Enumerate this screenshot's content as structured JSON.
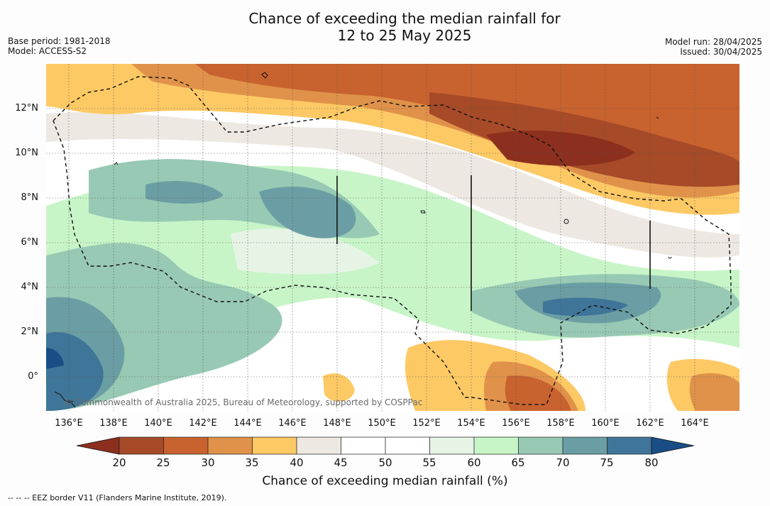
{
  "title": {
    "line1": "Chance of exceeding the median rainfall for",
    "line2": "12 to 25 May 2025"
  },
  "meta_left": {
    "base_period": "Base period: 1981-2018",
    "model": "Model: ACCESS-S2"
  },
  "meta_right": {
    "model_run": "Model run: 28/04/2025",
    "issued": "Issued: 30/04/2025"
  },
  "map": {
    "lat_labels": [
      "12°N",
      "10°N",
      "8°N",
      "6°N",
      "4°N",
      "2°N",
      "0°"
    ],
    "lon_labels": [
      "136°E",
      "138°E",
      "140°E",
      "142°E",
      "144°E",
      "146°E",
      "148°E",
      "150°E",
      "152°E",
      "154°E",
      "156°E",
      "158°E",
      "160°E",
      "162°E",
      "164°E"
    ],
    "credit": "© Commonwealth of Australia 2025, Bureau of Meteorology, supported by COSPPac"
  },
  "colorbar": {
    "ticks": [
      "20",
      "25",
      "30",
      "35",
      "40",
      "45",
      "50",
      "55",
      "60",
      "65",
      "70",
      "75",
      "80"
    ],
    "colors": [
      "#a64a28",
      "#c8622f",
      "#e0924a",
      "#fdc965",
      "#ede8e2",
      "#ffffff",
      "#ffffff",
      "#e6f4e6",
      "#c8f5c8",
      "#98c9b4",
      "#6b9ea4",
      "#3f7598"
    ],
    "under_color": "#8c2f1e",
    "over_color": "#1a4d85",
    "title": "Chance of exceeding median rainfall (%)"
  },
  "footnote": "--  --  -- EEZ border V11 (Flanders Marine Institute, 2019)."
}
